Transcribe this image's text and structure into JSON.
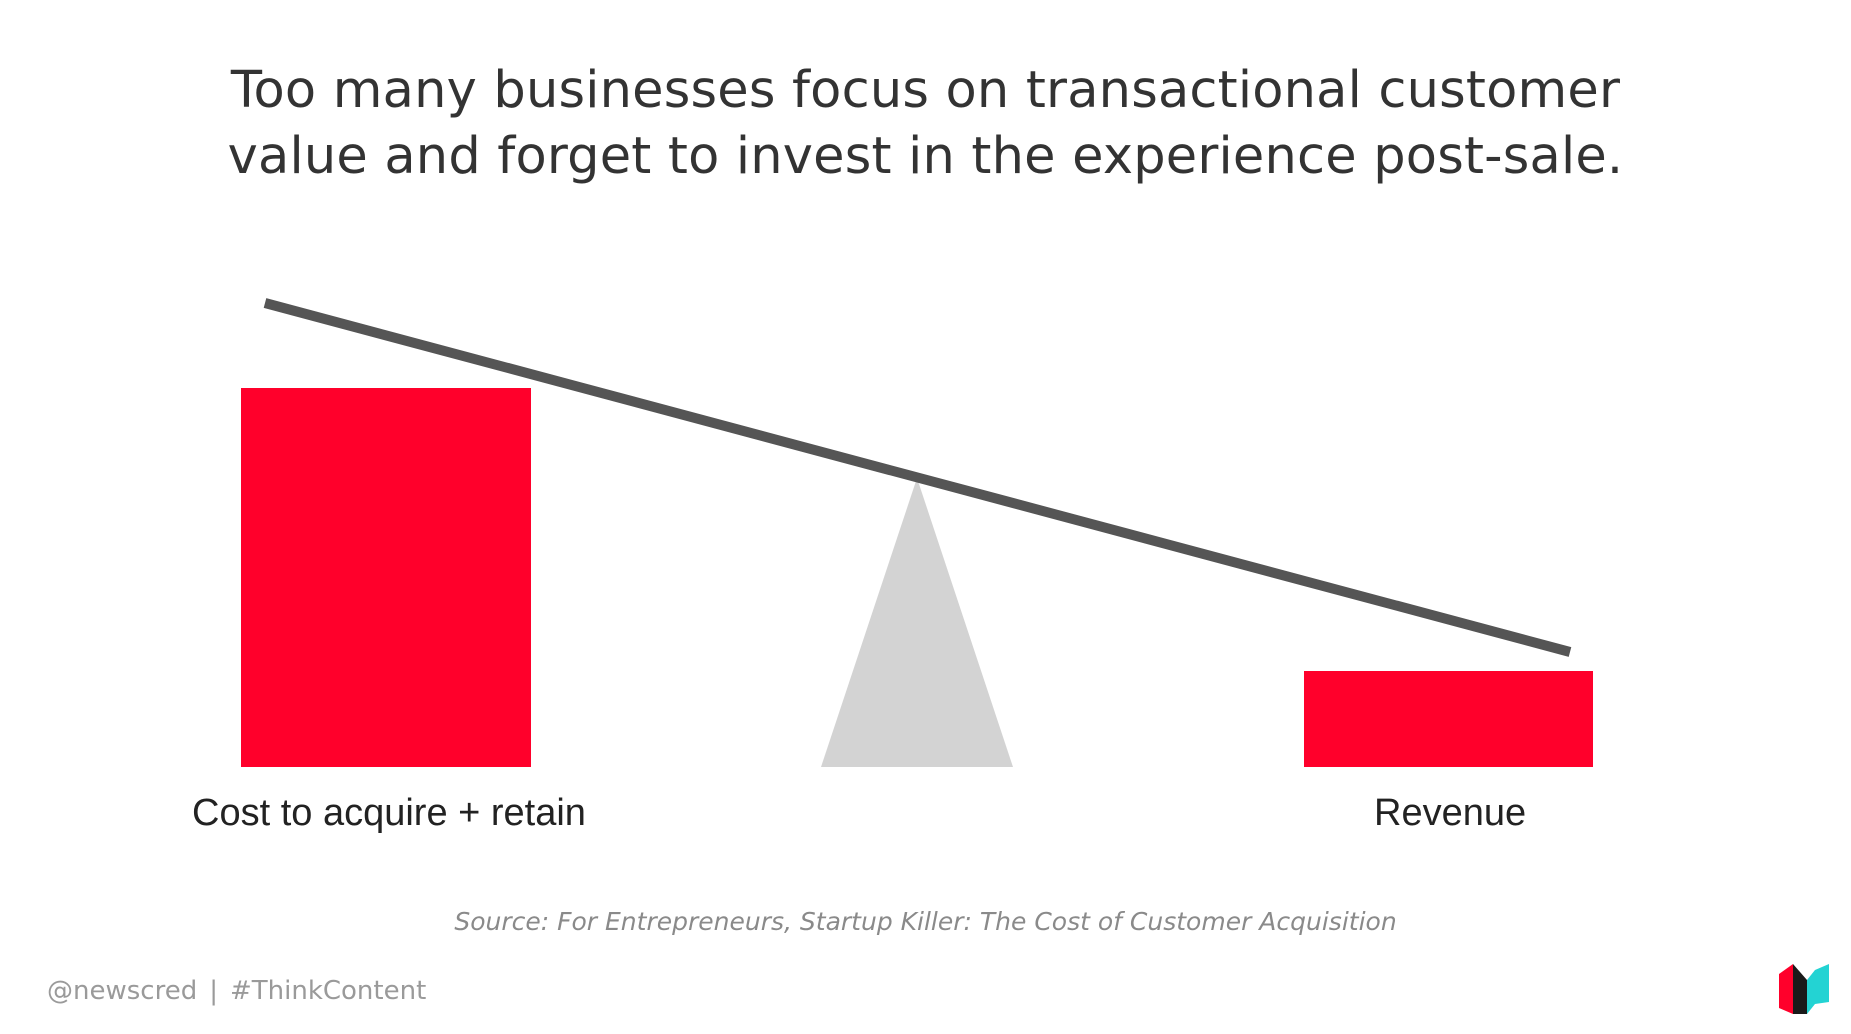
{
  "title": {
    "line1": "Too many businesses focus on transactional customer",
    "line2": "value and forget to invest in the experience post-sale."
  },
  "scale": {
    "left_label": "Cost to acquire + retain",
    "right_label": "Revenue",
    "bar_color": "#ff002b",
    "beam_color": "#555555",
    "fulcrum_color": "#d3d3d3"
  },
  "source": "Source: For Entrepreneurs, Startup Killer: The Cost of Customer Acquisition",
  "footer": {
    "handle": "@newscred",
    "separator": "|",
    "hashtag": "#ThinkContent"
  },
  "logo": {
    "icon": "newscred-logo-icon",
    "colors": [
      "#ff002b",
      "#1a1a1a",
      "#23d3d3"
    ]
  }
}
